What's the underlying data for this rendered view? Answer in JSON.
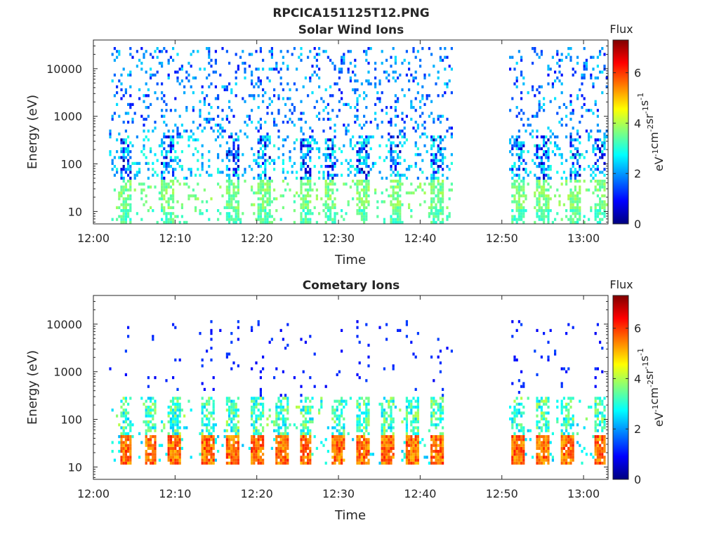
{
  "figure": {
    "title": "RPCICA151125T12.PNG"
  },
  "colorbar": {
    "label": "Flux",
    "unit_parts": [
      "eV",
      "-1",
      "cm",
      "-2",
      "sr",
      "-1",
      "s",
      "-1"
    ],
    "range": [
      0,
      7.3
    ],
    "ticks": [
      0,
      2,
      4,
      6
    ],
    "tick_labels": [
      "0",
      "2",
      "4",
      "6"
    ],
    "colormap": "jet",
    "colors": [
      "#00007f",
      "#0000ff",
      "#007fff",
      "#00ffff",
      "#7fff7f",
      "#ffff00",
      "#ff7f00",
      "#ff0000",
      "#7f0000"
    ]
  },
  "chart_data": [
    {
      "type": "heatmap",
      "title": "Solar Wind Ions",
      "xlabel": "Time",
      "ylabel": "Energy (eV)",
      "yscale": "log",
      "ylim": [
        5.5,
        40000
      ],
      "xlim": [
        "12:00",
        "13:03"
      ],
      "x_ticks": [
        "12:00",
        "12:10",
        "12:20",
        "12:30",
        "12:40",
        "12:50",
        "13:00"
      ],
      "y_ticks": [
        "10",
        "100",
        "1000",
        "10000"
      ],
      "data_intervals": [
        [
          "12:02",
          "12:44"
        ],
        [
          "12:51",
          "13:03"
        ]
      ],
      "data_gap": [
        "12:44",
        "12:51"
      ],
      "bands": [
        {
          "energy_range": [
            5.5,
            12
          ],
          "flux": 3.3,
          "note": "low-energy green streaks"
        },
        {
          "energy_range": [
            12,
            45
          ],
          "flux": 3.6,
          "note": "peaks near 20–40 eV"
        },
        {
          "energy_range": [
            45,
            400
          ],
          "flux": 2.4,
          "note": "cyan scatter with blue spikes"
        },
        {
          "energy_range": [
            400,
            30000
          ],
          "flux": 1.6,
          "note": "sparse blue/cyan speckle"
        }
      ],
      "bursts_times": [
        "12:04",
        "12:09",
        "12:17",
        "12:21",
        "12:26",
        "12:29",
        "12:33",
        "12:37",
        "12:42",
        "12:52",
        "12:55",
        "12:59",
        "13:02"
      ]
    },
    {
      "type": "heatmap",
      "title": "Cometary Ions",
      "xlabel": "Time",
      "ylabel": "Energy (eV)",
      "yscale": "log",
      "ylim": [
        5.5,
        40000
      ],
      "xlim": [
        "12:00",
        "13:03"
      ],
      "x_ticks": [
        "12:00",
        "12:10",
        "12:20",
        "12:30",
        "12:40",
        "12:50",
        "13:00"
      ],
      "y_ticks": [
        "10",
        "100",
        "1000",
        "10000"
      ],
      "data_intervals": [
        [
          "12:02",
          "12:44"
        ],
        [
          "12:51",
          "13:03"
        ]
      ],
      "data_gap": [
        "12:44",
        "12:51"
      ],
      "bands": [
        {
          "energy_range": [
            12,
            45
          ],
          "flux": 5.6,
          "note": "strong orange/red cores near 20–30 eV"
        },
        {
          "energy_range": [
            45,
            300
          ],
          "flux": 3.2,
          "note": "cyan/yellow plumes"
        },
        {
          "energy_range": [
            300,
            12000
          ],
          "flux": 1.0,
          "note": "sparse dark-blue dots"
        }
      ],
      "bursts_times": [
        "12:04",
        "12:07",
        "12:10",
        "12:14",
        "12:17",
        "12:20",
        "12:23",
        "12:26",
        "12:30",
        "12:33",
        "12:36",
        "12:39",
        "12:42",
        "12:52",
        "12:55",
        "12:58",
        "13:02"
      ]
    }
  ]
}
